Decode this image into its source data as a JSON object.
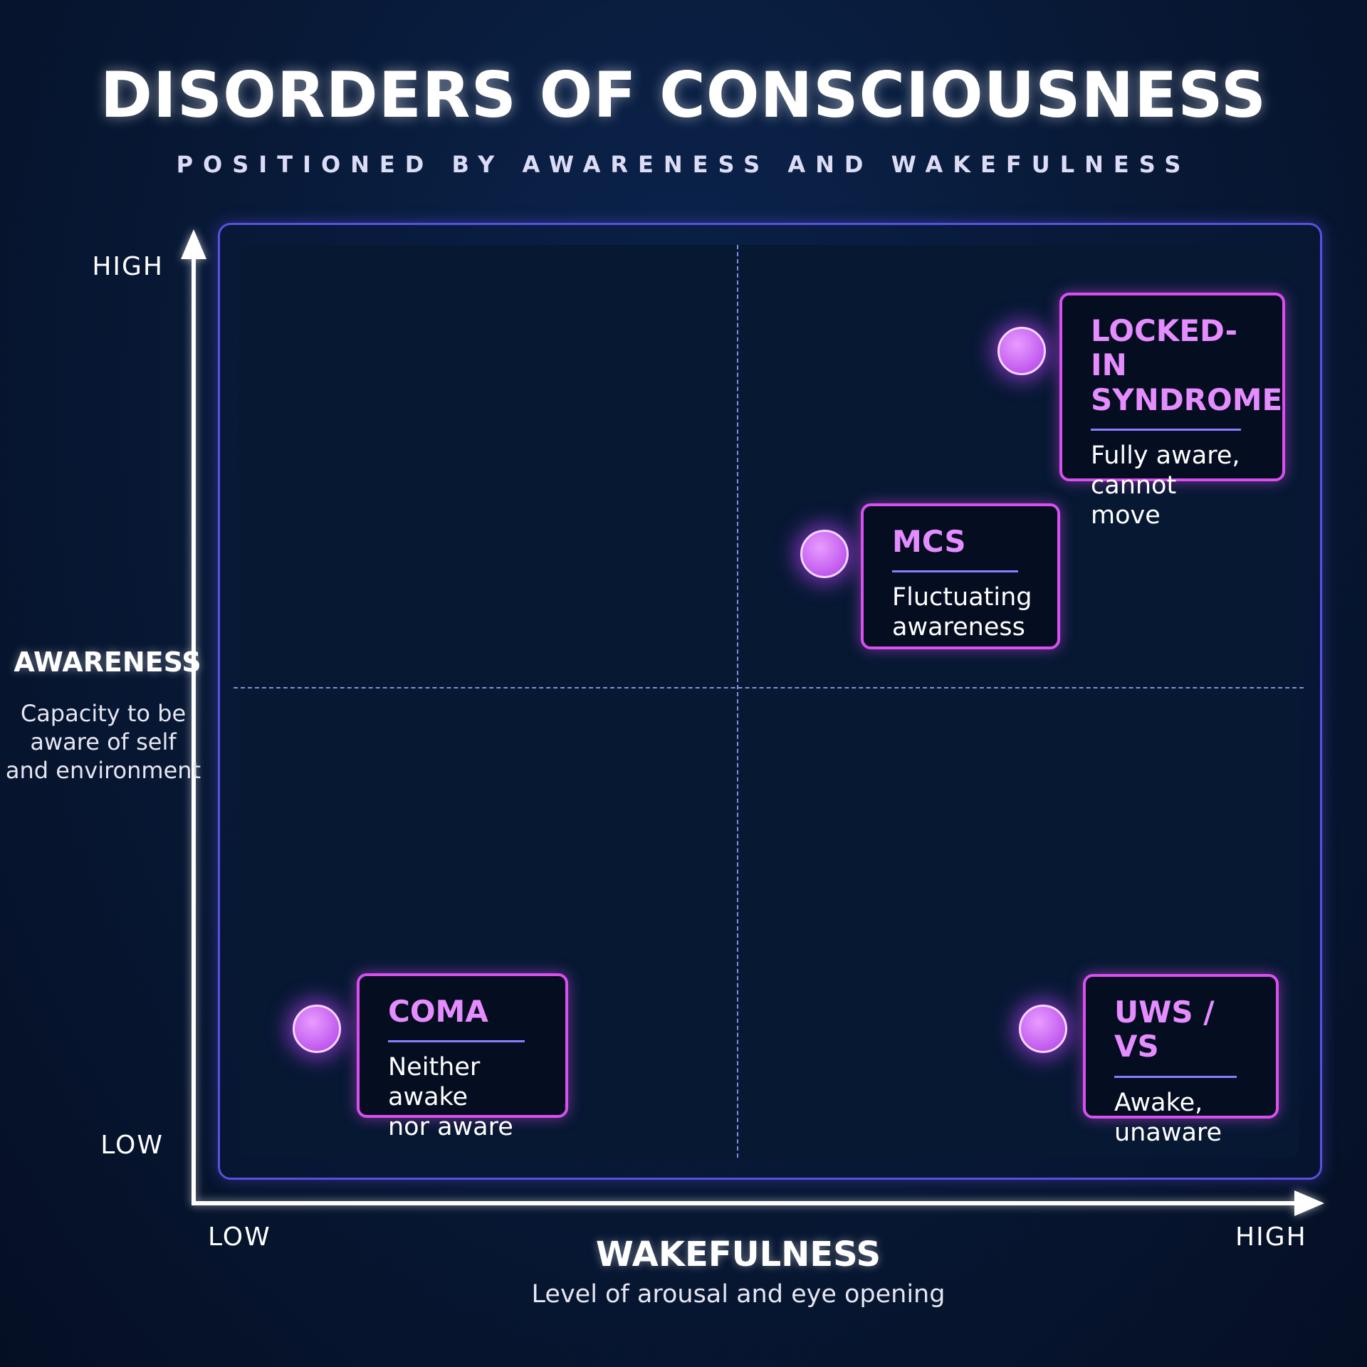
{
  "header": {
    "title": "DISORDERS OF CONSCIOUSNESS",
    "subtitle": "POSITIONED BY AWARENESS AND WAKEFULNESS"
  },
  "y_axis": {
    "name": "AWARENESS",
    "description": [
      "Capacity to be",
      "aware of self",
      "and environment"
    ],
    "high": "HIGH",
    "low": "LOW"
  },
  "x_axis": {
    "name": "WAKEFULNESS",
    "description": "Level of arousal and eye opening",
    "low": "LOW",
    "high": "HIGH"
  },
  "nodes": [
    {
      "title": [
        "LOCKED-IN",
        "SYNDROME"
      ],
      "description": [
        "Fully aware,",
        "cannot move"
      ]
    },
    {
      "title": [
        "MCS"
      ],
      "description": [
        "Fluctuating",
        "awareness"
      ]
    },
    {
      "title": [
        "COMA"
      ],
      "description": [
        "Neither awake",
        "nor aware"
      ]
    },
    {
      "title": [
        "UWS / VS"
      ],
      "description": [
        "Awake,",
        "unaware"
      ]
    }
  ]
}
